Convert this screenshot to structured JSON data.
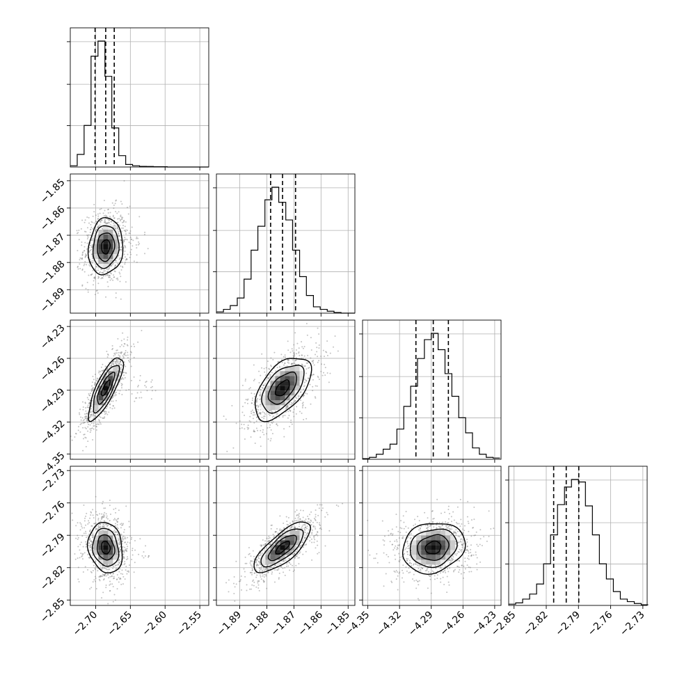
{
  "chart_data": {
    "type": "corner",
    "grid": true,
    "parameters": [
      {
        "range": [
          -2.7365,
          -2.5371
        ],
        "ticks": [
          -2.7,
          -2.65,
          -2.6,
          -2.55
        ],
        "tick_labels": [
          "−2.70",
          "−2.65",
          "−2.60",
          "−2.55"
        ]
      },
      {
        "range": [
          -1.8986,
          -1.8475
        ],
        "ticks": [
          -1.89,
          -1.88,
          -1.87,
          -1.86,
          -1.85
        ],
        "tick_labels": [
          "−1.89",
          "−1.88",
          "−1.87",
          "−1.86",
          "−1.85"
        ]
      },
      {
        "range": [
          -4.355,
          -4.224
        ],
        "ticks": [
          -4.35,
          -4.32,
          -4.29,
          -4.26,
          -4.23
        ],
        "tick_labels": [
          "−4.35",
          "−4.32",
          "−4.29",
          "−4.26",
          "−4.23"
        ]
      },
      {
        "range": [
          -2.855,
          -2.726
        ],
        "ticks": [
          -2.85,
          -2.82,
          -2.79,
          -2.76,
          -2.73
        ],
        "tick_labels": [
          "−2.85",
          "−2.82",
          "−2.79",
          "−2.76",
          "−2.73"
        ]
      }
    ],
    "histograms": [
      {
        "bin_edges": [
          -2.7365,
          -2.7265,
          -2.7166,
          -2.7066,
          -2.6966,
          -2.6866,
          -2.6767,
          -2.6667,
          -2.6567,
          -2.6468,
          -2.6368,
          -2.6268,
          -2.6168,
          -2.6069,
          -2.5969,
          -2.5869,
          -2.577,
          -2.567,
          -2.557,
          -2.5471,
          -2.5371
        ],
        "counts": [
          1,
          10,
          33,
          88,
          100,
          72,
          31,
          9,
          2,
          1,
          0.5,
          0.4,
          0.2,
          0.2,
          0,
          0,
          0,
          0,
          0,
          0
        ],
        "quantiles": [
          -2.7008,
          -2.6855,
          -2.6732
        ]
      },
      {
        "bin_edges": [
          -1.8986,
          -1.896,
          -1.8935,
          -1.8909,
          -1.8884,
          -1.8858,
          -1.8833,
          -1.8807,
          -1.8781,
          -1.8756,
          -1.873,
          -1.8705,
          -1.8679,
          -1.8654,
          -1.8628,
          -1.8603,
          -1.8577,
          -1.8552,
          -1.8526,
          -1.8501,
          -1.8475
        ],
        "counts": [
          1,
          3,
          6,
          12,
          27,
          50,
          69,
          90,
          100,
          88,
          74,
          50,
          29,
          14,
          5,
          3,
          1.5,
          0.5,
          0,
          0
        ],
        "quantiles": [
          -1.8786,
          -1.8742,
          -1.8694
        ]
      },
      {
        "bin_edges": [
          -4.355,
          -4.3485,
          -4.342,
          -4.3355,
          -4.329,
          -4.3225,
          -4.316,
          -4.3095,
          -4.303,
          -4.2965,
          -4.29,
          -4.2835,
          -4.277,
          -4.2705,
          -4.264,
          -4.2575,
          -4.251,
          -4.2445,
          -4.238,
          -4.2315,
          -4.225
        ],
        "counts": [
          0.5,
          1.5,
          4,
          8,
          12,
          24,
          42,
          58,
          80,
          95,
          100,
          87,
          68,
          50,
          33,
          21,
          9,
          4,
          1.5,
          1
        ],
        "quantiles": [
          -4.3045,
          -4.2881,
          -4.2738
        ]
      },
      {
        "bin_edges": [
          -2.855,
          -2.8485,
          -2.842,
          -2.8355,
          -2.829,
          -2.8225,
          -2.816,
          -2.8095,
          -2.803,
          -2.7965,
          -2.79,
          -2.7835,
          -2.777,
          -2.7705,
          -2.764,
          -2.7575,
          -2.751,
          -2.7445,
          -2.738,
          -2.7315,
          -2.725
        ],
        "counts": [
          1,
          2,
          5,
          9,
          17,
          33,
          56,
          80,
          94,
          100,
          98,
          79,
          56,
          33,
          21,
          11,
          5,
          3,
          1.5,
          0.5
        ],
        "quantiles": [
          -2.8131,
          -2.8014,
          -2.7897
        ]
      }
    ],
    "pairs": [
      {
        "x": 0,
        "y": 1,
        "center": [
          -2.6855,
          -1.8742
        ],
        "sd": [
          0.0124,
          0.0052
        ],
        "rho": 0.1,
        "outlier_spread": [
          0.08,
          0.012
        ]
      },
      {
        "x": 0,
        "y": 2,
        "center": [
          -2.6855,
          -4.2881
        ],
        "sd": [
          0.0124,
          0.0148
        ],
        "rho": 0.8,
        "outlier_spread": [
          0.09,
          0.025
        ]
      },
      {
        "x": 1,
        "y": 2,
        "center": [
          -1.8742,
          -4.2881
        ],
        "sd": [
          0.0052,
          0.0148
        ],
        "rho": 0.55,
        "outlier_spread": [
          0.01,
          0.03
        ]
      },
      {
        "x": 0,
        "y": 3,
        "center": [
          -2.6855,
          -2.8014
        ],
        "sd": [
          0.0124,
          0.0117
        ],
        "rho": -0.15,
        "outlier_spread": [
          0.08,
          0.02
        ]
      },
      {
        "x": 1,
        "y": 3,
        "center": [
          -1.8742,
          -2.8014
        ],
        "sd": [
          0.0052,
          0.0117
        ],
        "rho": 0.75,
        "outlier_spread": [
          0.008,
          0.02
        ]
      },
      {
        "x": 2,
        "y": 3,
        "center": [
          -4.2881,
          -2.8014
        ],
        "sd": [
          0.0148,
          0.0117
        ],
        "rho": 0.15,
        "outlier_spread": [
          0.03,
          0.025
        ]
      }
    ],
    "contour_levels_sigma": [
      0.5,
      1.0,
      1.5,
      2.0
    ]
  }
}
